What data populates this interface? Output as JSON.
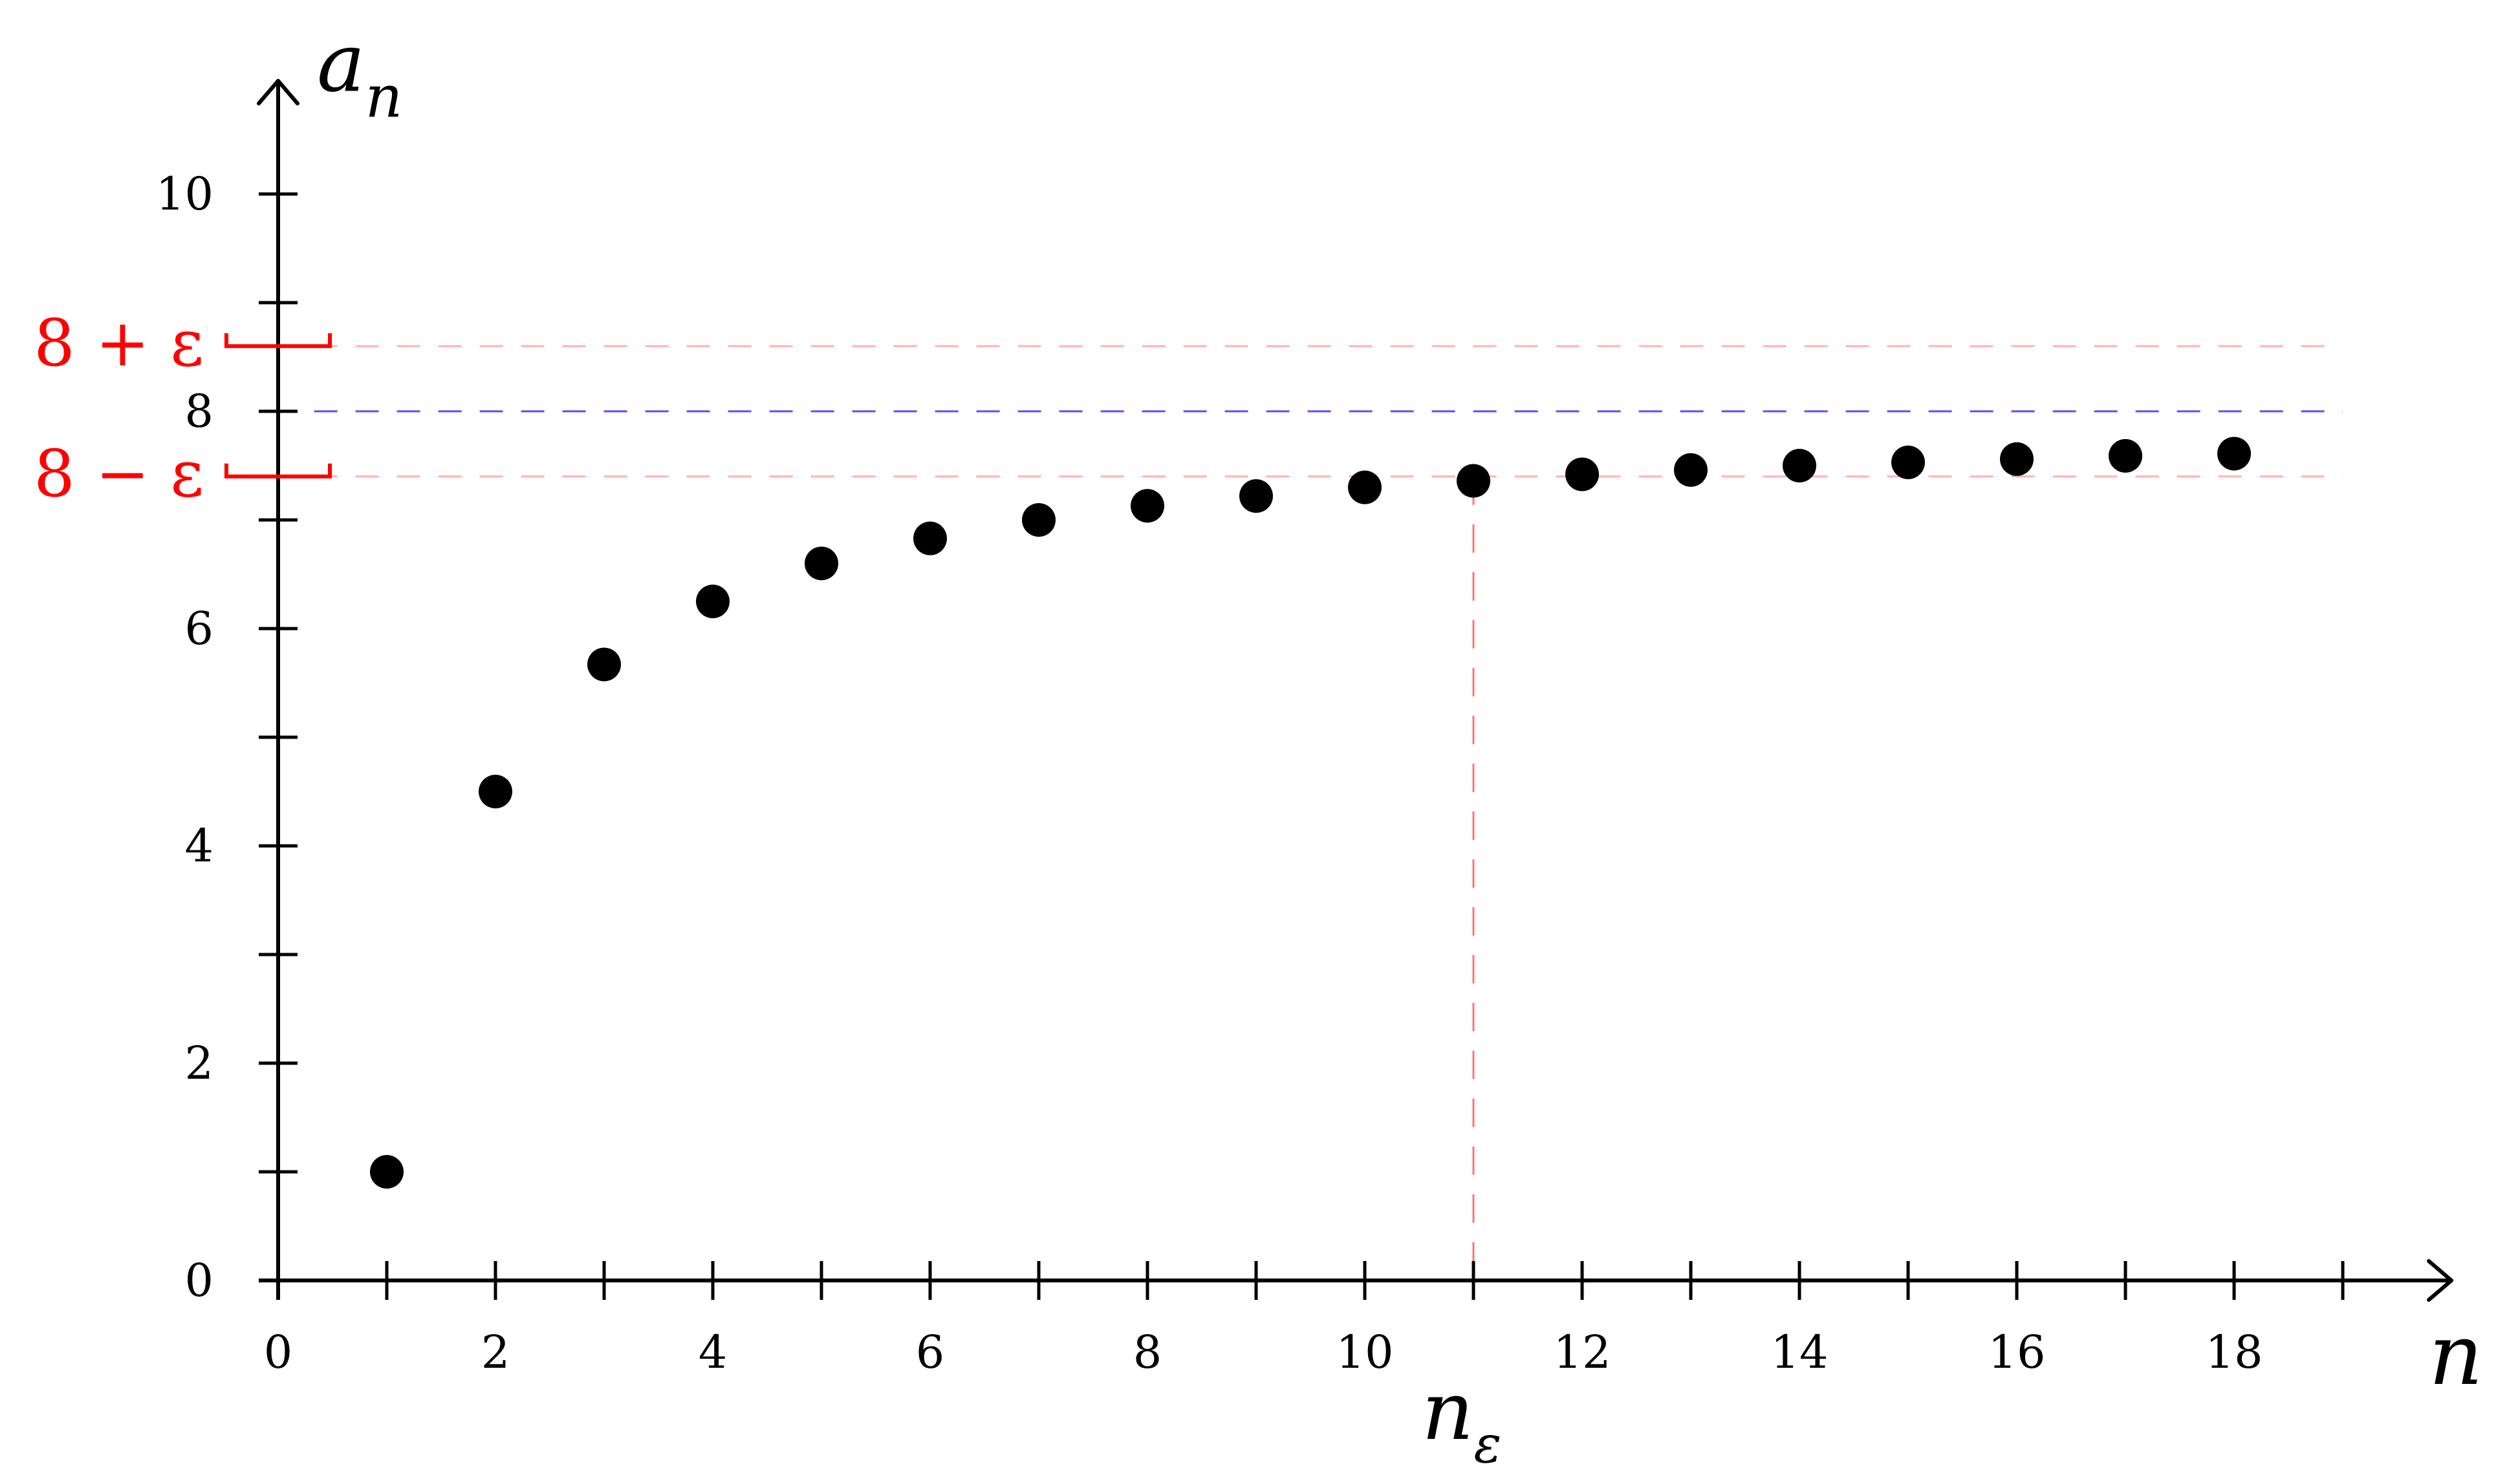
{
  "chart_data": {
    "type": "scatter",
    "title": "",
    "x_axis": {
      "label": "n",
      "range": [
        0,
        19
      ],
      "tick_labels": [
        "0",
        "2",
        "4",
        "6",
        "8",
        "10",
        "12",
        "14",
        "16",
        "18"
      ],
      "tick_values": [
        0,
        2,
        4,
        6,
        8,
        10,
        12,
        14,
        16,
        18
      ],
      "minor_ticks": [
        1,
        3,
        5,
        7,
        9,
        11,
        13,
        15,
        17,
        19
      ]
    },
    "y_axis": {
      "label": "a",
      "label_subscript": "n",
      "range": [
        0,
        10
      ],
      "tick_labels": [
        "0",
        "2",
        "4",
        "6",
        "8",
        "10"
      ],
      "tick_values": [
        0,
        2,
        4,
        6,
        8,
        10
      ],
      "minor_ticks": [
        1,
        3,
        5,
        7,
        9
      ]
    },
    "points": {
      "x": [
        1,
        2,
        3,
        4,
        5,
        6,
        7,
        8,
        9,
        10,
        11,
        12,
        13,
        14,
        15,
        16,
        17,
        18
      ],
      "y": [
        1.0,
        4.5,
        5.67,
        6.25,
        6.6,
        6.83,
        7.0,
        7.13,
        7.22,
        7.3,
        7.36,
        7.42,
        7.46,
        7.5,
        7.53,
        7.56,
        7.59,
        7.61
      ]
    },
    "limit": {
      "value": 8,
      "color": "#3333ff"
    },
    "epsilon_band": {
      "upper": 8.6,
      "lower": 7.4,
      "upper_label": "8 + ε",
      "lower_label": "8 − ε",
      "color": "#ff0000"
    },
    "n_epsilon": {
      "x": 11,
      "label": "n",
      "label_subscript": "ε",
      "color": "#ff0000"
    },
    "point_color": "#000000",
    "grid": false,
    "legend": "none"
  }
}
